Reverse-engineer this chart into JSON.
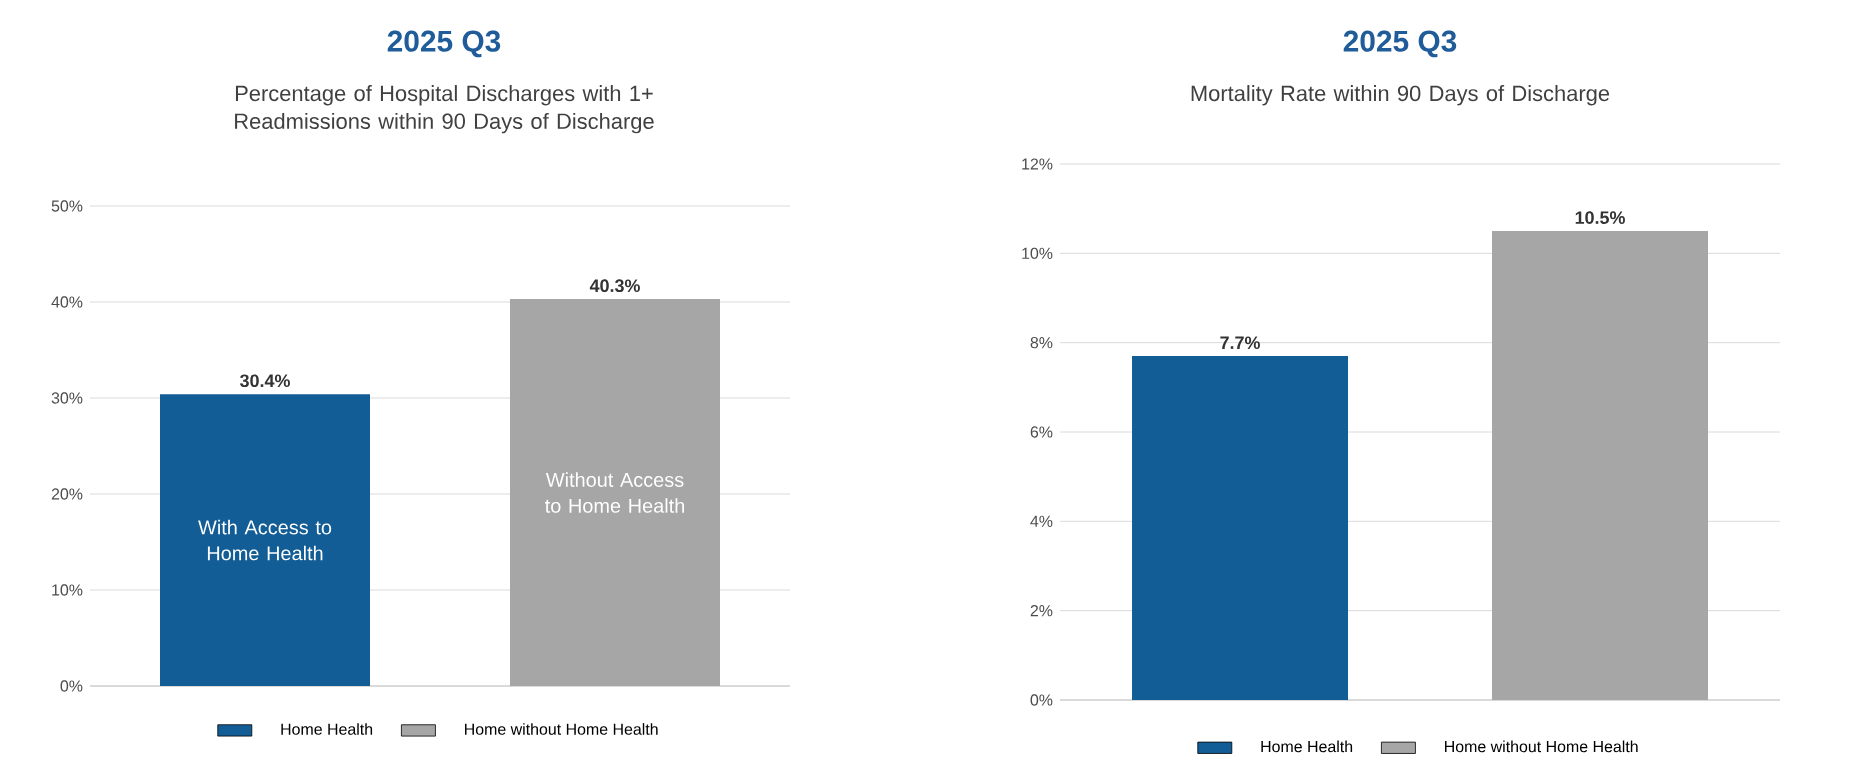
{
  "chart_data": [
    {
      "type": "bar",
      "title": "2025 Q3",
      "subtitle": "Percentage of Hospital Discharges with 1+ Readmissions within 90 Days of Discharge",
      "categories": [
        "With Access to Home Health",
        "Without Access to Home Health"
      ],
      "series": [
        {
          "name": "Home Health",
          "color": "#135d96",
          "values": [
            30.4,
            null
          ],
          "value_labels": [
            "30.4%",
            null
          ]
        },
        {
          "name": "Home without Home Health",
          "color": "#a6a6a6",
          "values": [
            null,
            40.3
          ],
          "value_labels": [
            null,
            "40.3%"
          ]
        }
      ],
      "ylim": [
        0,
        50
      ],
      "yticks": [
        {
          "value": 0,
          "label": "0%"
        },
        {
          "value": 10,
          "label": "10%"
        },
        {
          "value": 20,
          "label": "20%"
        },
        {
          "value": 30,
          "label": "30%"
        },
        {
          "value": 40,
          "label": "40%"
        },
        {
          "value": 50,
          "label": "50%"
        }
      ],
      "grid": "y",
      "legend": "bottom"
    },
    {
      "type": "bar",
      "title": "2025 Q3",
      "subtitle": "Mortality Rate within 90 Days of Discharge",
      "categories": [
        null,
        null
      ],
      "series": [
        {
          "name": "Home Health",
          "color": "#135d96",
          "values": [
            7.7,
            null
          ],
          "value_labels": [
            "7.7%",
            null
          ]
        },
        {
          "name": "Home without Home Health",
          "color": "#a6a6a6",
          "values": [
            null,
            10.5
          ],
          "value_labels": [
            null,
            "10.5%"
          ]
        }
      ],
      "ylim": [
        0,
        12
      ],
      "yticks": [
        {
          "value": 0,
          "label": "0%"
        },
        {
          "value": 2,
          "label": "2%"
        },
        {
          "value": 4,
          "label": "4%"
        },
        {
          "value": 6,
          "label": "6%"
        },
        {
          "value": 8,
          "label": "8%"
        },
        {
          "value": 10,
          "label": "10%"
        },
        {
          "value": 12,
          "label": "12%"
        }
      ],
      "grid": "y",
      "legend": "bottom"
    }
  ]
}
